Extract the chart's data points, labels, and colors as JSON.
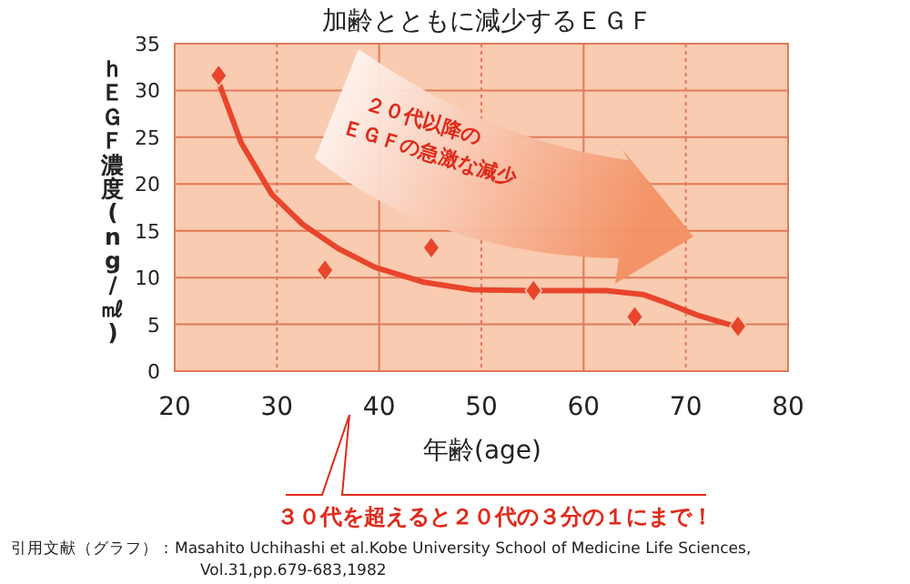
{
  "chart_data": {
    "type": "scatter",
    "title": "加齢とともに減少するＥＧＦ",
    "xlabel": "年齢(age)",
    "ylabel": "ｈＥＧＦ濃度(ng/㎖)",
    "x": [
      24.3,
      34.7,
      45.1,
      55.1,
      65.0,
      75.1
    ],
    "series": [
      {
        "type": "scatter",
        "color": "#e8452c",
        "marker": "diamond",
        "values": [
          31.6,
          10.8,
          13.2,
          8.6,
          5.8,
          4.8
        ]
      },
      {
        "type": "line",
        "color": "#e8452c",
        "marker": "none",
        "x": [
          24.3,
          26.5,
          29.5,
          32.5,
          36,
          39.6,
          44.4,
          49.1,
          55.1,
          62.2,
          65.8,
          68.1,
          71.1,
          75.1
        ],
        "values": [
          30.9,
          24.4,
          18.9,
          15.7,
          13.1,
          11.1,
          9.5,
          8.7,
          8.6,
          8.6,
          8.2,
          7.3,
          6.0,
          4.7
        ]
      }
    ],
    "xlim": [
      20,
      80
    ],
    "xticks": [
      20,
      30,
      40,
      50,
      60,
      70,
      80
    ],
    "ylim": [
      0,
      35
    ],
    "yticks": [
      0,
      5,
      10,
      15,
      20,
      25,
      30,
      35
    ],
    "grid": true,
    "annotations": [
      "２０代以降の\nＥＧＦの急激な減少",
      "３０代を超えると２０代の３分の１にまで！",
      "引用文献（グラフ）：Masahito Uchihashi et al.Kobe University School of Medicine Life Sciences,\nVol.31,pp.679-683,1982"
    ]
  }
}
